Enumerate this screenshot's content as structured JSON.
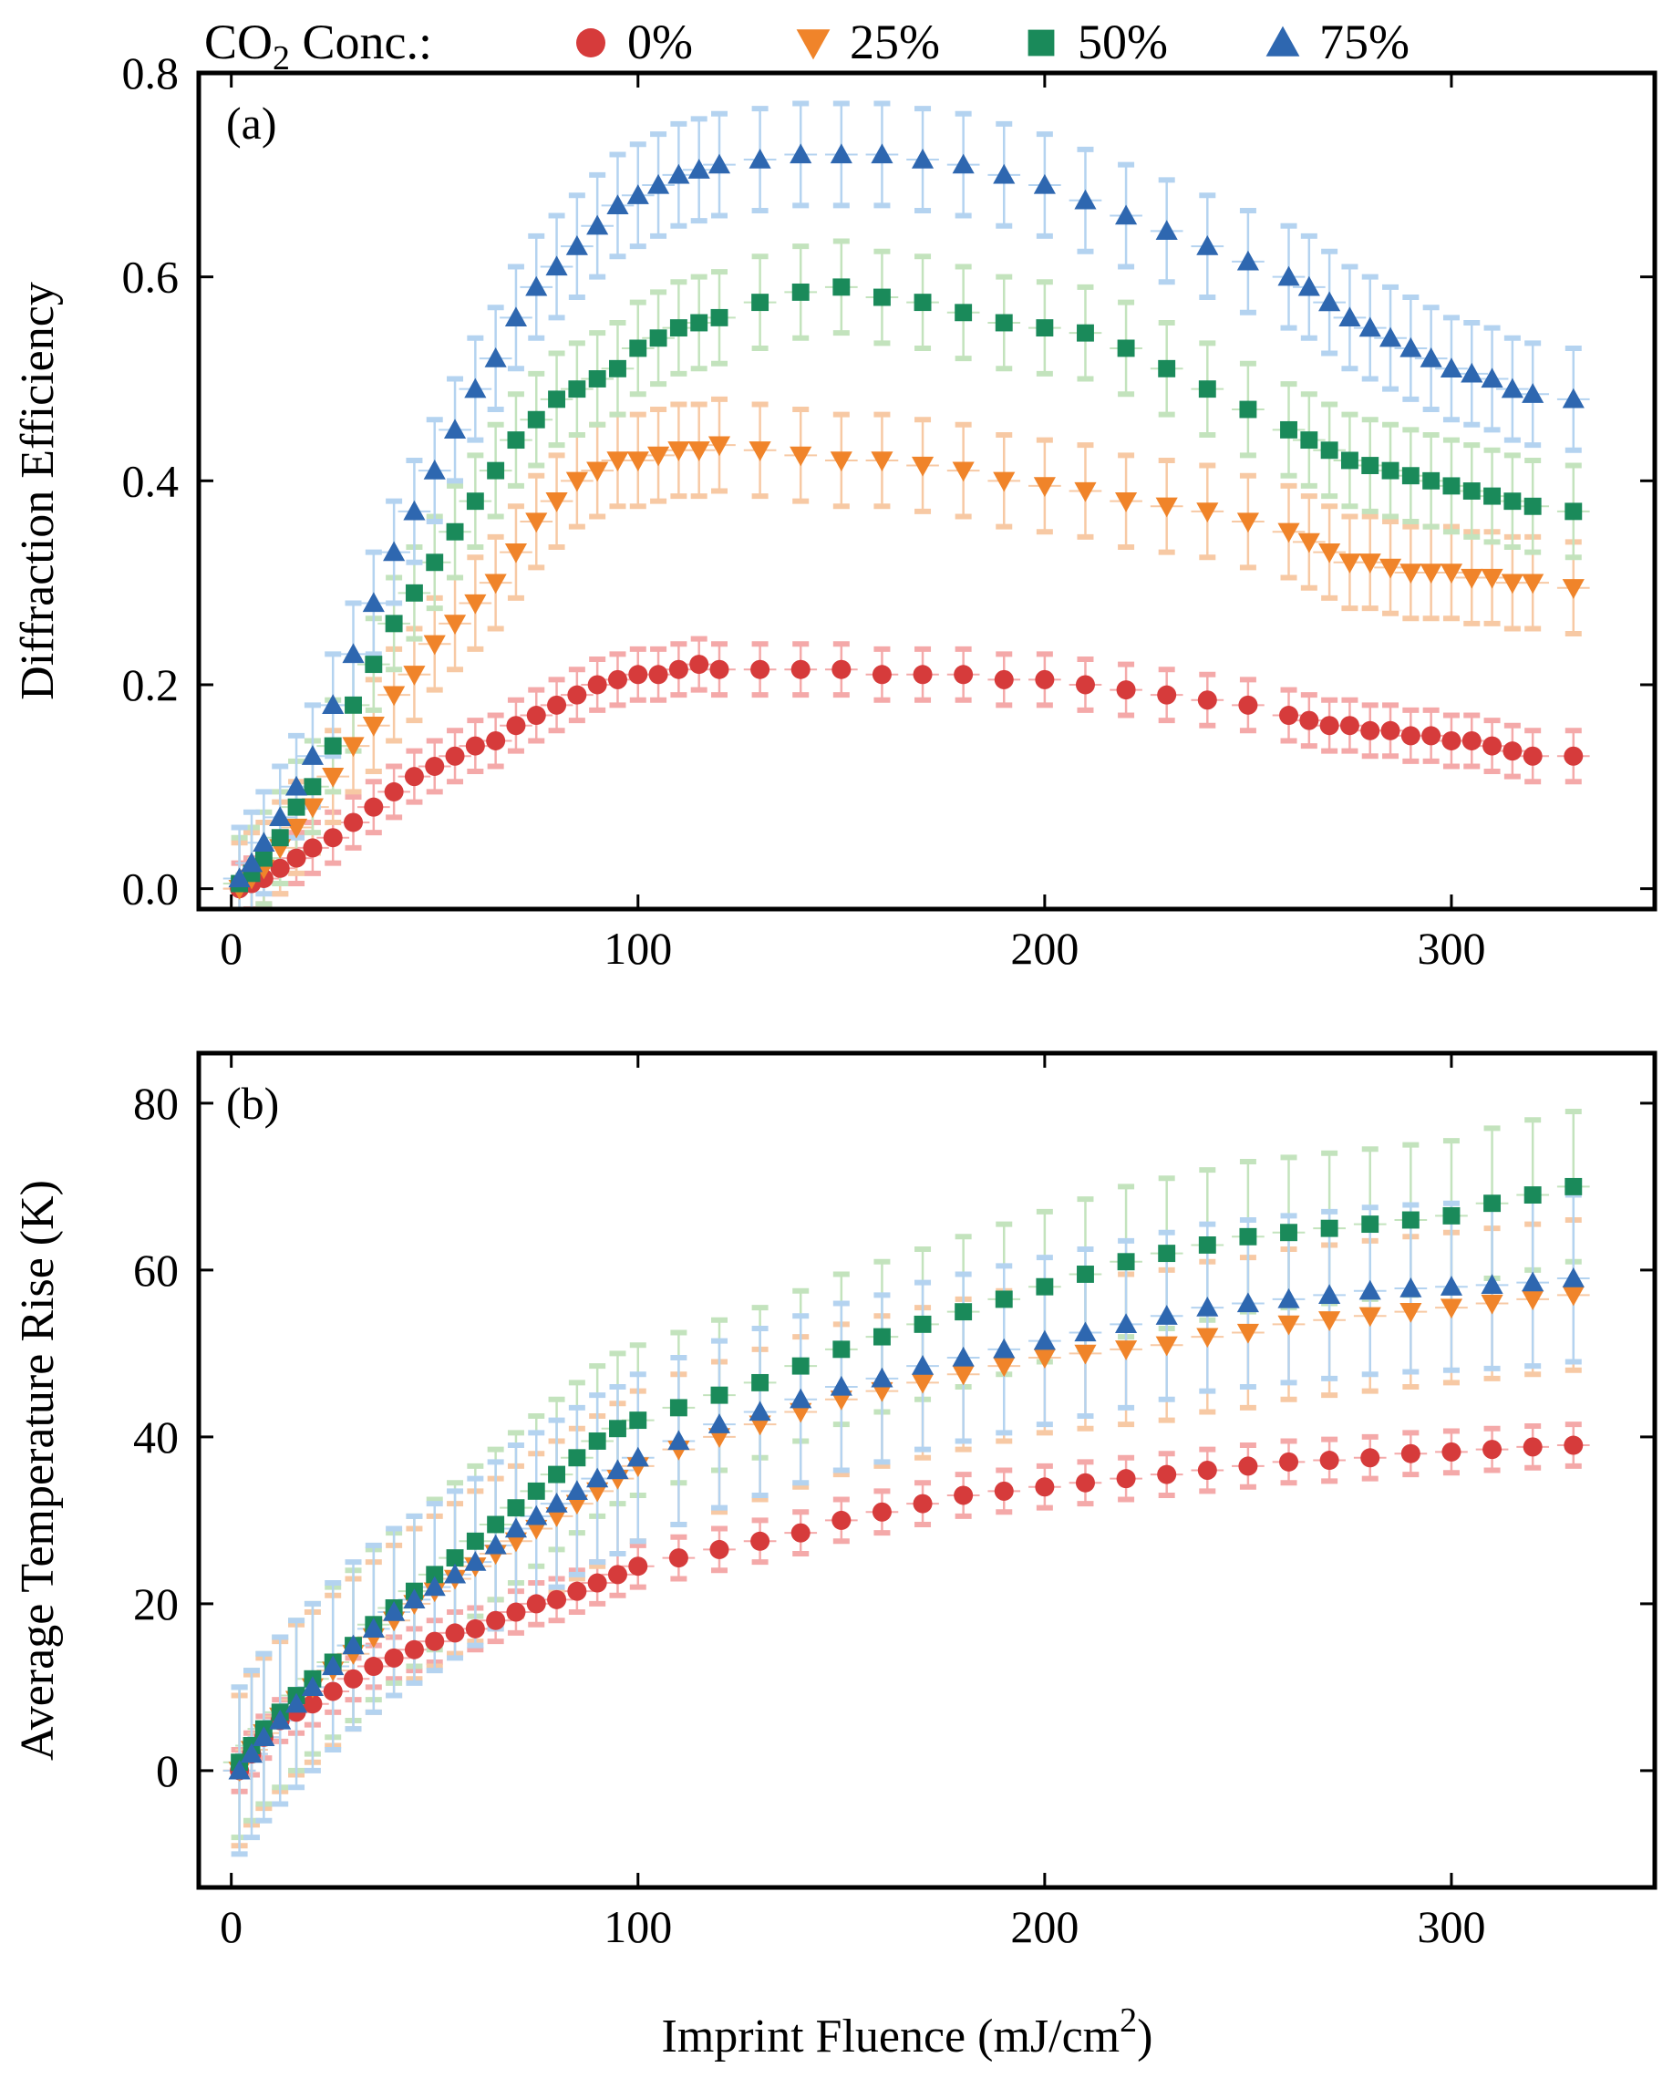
{
  "legend": {
    "title_main": "CO",
    "title_sub": "2",
    "title_rest": " Conc.:",
    "entries": [
      {
        "label": "0%",
        "marker": "circle",
        "color": "#d63b3b"
      },
      {
        "label": "25%",
        "marker": "triangle-down",
        "color": "#f0842a"
      },
      {
        "label": "50%",
        "marker": "square",
        "color": "#1a8a5a"
      },
      {
        "label": "75%",
        "marker": "triangle-up",
        "color": "#2e67b0"
      }
    ]
  },
  "xlabel_main": "Imprint Fluence (mJ/cm",
  "xlabel_sup": "2",
  "xlabel_end": ")",
  "chart_data": [
    {
      "type": "scatter",
      "panel": "(a)",
      "ylabel": "Diffraction Efficiency",
      "xlim": [
        -8,
        350
      ],
      "ylim": [
        -0.02,
        0.8
      ],
      "xticks": [
        0,
        100,
        200,
        300
      ],
      "xtick_labels": [
        "0",
        "100",
        "200",
        "300"
      ],
      "yticks": [
        0.0,
        0.2,
        0.4,
        0.6,
        0.8
      ],
      "ytick_labels": [
        "0.0",
        "0.2",
        "0.4",
        "0.6",
        "0.8"
      ],
      "series": [
        {
          "name": "0%",
          "x": [
            2,
            5,
            8,
            12,
            16,
            20,
            25,
            30,
            35,
            40,
            45,
            50,
            55,
            60,
            65,
            70,
            75,
            80,
            85,
            90,
            95,
            100,
            105,
            110,
            115,
            120,
            130,
            140,
            150,
            160,
            170,
            180,
            190,
            200,
            210,
            220,
            230,
            240,
            250,
            260,
            265,
            270,
            275,
            280,
            285,
            290,
            295,
            300,
            305,
            310,
            315,
            320,
            330
          ],
          "y": [
            0.0,
            0.005,
            0.01,
            0.02,
            0.03,
            0.04,
            0.05,
            0.065,
            0.08,
            0.095,
            0.11,
            0.12,
            0.13,
            0.14,
            0.145,
            0.16,
            0.17,
            0.18,
            0.19,
            0.2,
            0.205,
            0.21,
            0.21,
            0.215,
            0.22,
            0.215,
            0.215,
            0.215,
            0.215,
            0.21,
            0.21,
            0.21,
            0.205,
            0.205,
            0.2,
            0.195,
            0.19,
            0.185,
            0.18,
            0.17,
            0.165,
            0.16,
            0.16,
            0.155,
            0.155,
            0.15,
            0.15,
            0.145,
            0.145,
            0.14,
            0.135,
            0.13,
            0.13
          ],
          "err": 0.025
        },
        {
          "name": "25%",
          "x": [
            2,
            5,
            8,
            12,
            16,
            20,
            25,
            30,
            35,
            40,
            45,
            50,
            55,
            60,
            65,
            70,
            75,
            80,
            85,
            90,
            95,
            100,
            105,
            110,
            115,
            120,
            130,
            140,
            150,
            160,
            170,
            180,
            190,
            200,
            210,
            220,
            230,
            240,
            250,
            260,
            265,
            270,
            275,
            280,
            285,
            290,
            295,
            300,
            305,
            310,
            315,
            320,
            330
          ],
          "y": [
            0.0,
            0.01,
            0.02,
            0.04,
            0.06,
            0.08,
            0.11,
            0.14,
            0.16,
            0.19,
            0.21,
            0.24,
            0.26,
            0.28,
            0.3,
            0.33,
            0.36,
            0.38,
            0.4,
            0.41,
            0.42,
            0.42,
            0.425,
            0.43,
            0.43,
            0.435,
            0.43,
            0.425,
            0.42,
            0.42,
            0.415,
            0.41,
            0.4,
            0.395,
            0.39,
            0.38,
            0.375,
            0.37,
            0.36,
            0.35,
            0.34,
            0.33,
            0.32,
            0.32,
            0.315,
            0.31,
            0.31,
            0.31,
            0.305,
            0.305,
            0.3,
            0.3,
            0.295
          ],
          "err": 0.045
        },
        {
          "name": "50%",
          "x": [
            2,
            5,
            8,
            12,
            16,
            20,
            25,
            30,
            35,
            40,
            45,
            50,
            55,
            60,
            65,
            70,
            75,
            80,
            85,
            90,
            95,
            100,
            105,
            110,
            115,
            120,
            130,
            140,
            150,
            160,
            170,
            180,
            190,
            200,
            210,
            220,
            230,
            240,
            250,
            260,
            265,
            270,
            275,
            280,
            285,
            290,
            295,
            300,
            305,
            310,
            315,
            320,
            330
          ],
          "y": [
            0.005,
            0.015,
            0.03,
            0.05,
            0.08,
            0.1,
            0.14,
            0.18,
            0.22,
            0.26,
            0.29,
            0.32,
            0.35,
            0.38,
            0.41,
            0.44,
            0.46,
            0.48,
            0.49,
            0.5,
            0.51,
            0.53,
            0.54,
            0.55,
            0.555,
            0.56,
            0.575,
            0.585,
            0.59,
            0.58,
            0.575,
            0.565,
            0.555,
            0.55,
            0.545,
            0.53,
            0.51,
            0.49,
            0.47,
            0.45,
            0.44,
            0.43,
            0.42,
            0.415,
            0.41,
            0.405,
            0.4,
            0.395,
            0.39,
            0.385,
            0.38,
            0.375,
            0.37
          ],
          "err": 0.045
        },
        {
          "name": "75%",
          "x": [
            2,
            5,
            8,
            12,
            16,
            20,
            25,
            30,
            35,
            40,
            45,
            50,
            55,
            60,
            65,
            70,
            75,
            80,
            85,
            90,
            95,
            100,
            105,
            110,
            115,
            120,
            130,
            140,
            150,
            160,
            170,
            180,
            190,
            200,
            210,
            220,
            230,
            240,
            250,
            260,
            265,
            270,
            275,
            280,
            285,
            290,
            295,
            300,
            305,
            310,
            315,
            320,
            330
          ],
          "y": [
            0.01,
            0.025,
            0.045,
            0.07,
            0.1,
            0.13,
            0.18,
            0.23,
            0.28,
            0.33,
            0.37,
            0.41,
            0.45,
            0.49,
            0.52,
            0.56,
            0.59,
            0.61,
            0.63,
            0.65,
            0.67,
            0.68,
            0.69,
            0.7,
            0.705,
            0.71,
            0.715,
            0.72,
            0.72,
            0.72,
            0.715,
            0.71,
            0.7,
            0.69,
            0.675,
            0.66,
            0.645,
            0.63,
            0.615,
            0.6,
            0.59,
            0.575,
            0.56,
            0.55,
            0.54,
            0.53,
            0.52,
            0.51,
            0.505,
            0.5,
            0.49,
            0.485,
            0.48
          ],
          "err": 0.05
        }
      ]
    },
    {
      "type": "scatter",
      "panel": "(b)",
      "ylabel": "Average Temperature Rise (K)",
      "xlim": [
        -8,
        350
      ],
      "ylim": [
        -14,
        86
      ],
      "xticks": [
        0,
        100,
        200,
        300
      ],
      "xtick_labels": [
        "0",
        "100",
        "200",
        "300"
      ],
      "yticks": [
        0,
        20,
        40,
        60,
        80
      ],
      "ytick_labels": [
        "0",
        "20",
        "40",
        "60",
        "80"
      ],
      "series": [
        {
          "name": "0%",
          "x": [
            2,
            5,
            8,
            12,
            16,
            20,
            25,
            30,
            35,
            40,
            45,
            50,
            55,
            60,
            65,
            70,
            75,
            80,
            85,
            90,
            95,
            100,
            110,
            120,
            130,
            140,
            150,
            160,
            170,
            180,
            190,
            200,
            210,
            220,
            230,
            240,
            250,
            260,
            270,
            280,
            290,
            300,
            310,
            320,
            330
          ],
          "y": [
            0,
            2,
            4,
            6,
            7,
            8,
            9.5,
            11,
            12.5,
            13.5,
            14.5,
            15.5,
            16.5,
            17,
            18,
            19,
            20,
            20.5,
            21.5,
            22.5,
            23.5,
            24.5,
            25.5,
            26.5,
            27.5,
            28.5,
            30,
            31,
            32,
            33,
            33.5,
            34,
            34.5,
            35,
            35.5,
            36,
            36.5,
            37,
            37.2,
            37.5,
            38,
            38.2,
            38.5,
            38.8,
            39
          ],
          "err": 2.5
        },
        {
          "name": "25%",
          "x": [
            2,
            5,
            8,
            12,
            16,
            20,
            25,
            30,
            35,
            40,
            45,
            50,
            55,
            60,
            65,
            70,
            75,
            80,
            85,
            90,
            95,
            100,
            110,
            120,
            130,
            140,
            150,
            160,
            170,
            180,
            190,
            200,
            210,
            220,
            230,
            240,
            250,
            260,
            270,
            280,
            290,
            300,
            310,
            320,
            330
          ],
          "y": [
            0,
            2.5,
            4.5,
            6.5,
            8.5,
            10,
            12,
            14,
            16,
            18,
            20,
            21.5,
            23,
            24.5,
            26,
            27.5,
            29,
            30.5,
            32,
            33.5,
            35,
            36.5,
            38.5,
            40,
            41.5,
            43,
            44.5,
            45.5,
            46.5,
            47.5,
            48.5,
            49.5,
            50,
            50.5,
            51,
            52,
            52.5,
            53.5,
            54,
            54.5,
            55,
            55.5,
            56,
            56.5,
            57
          ],
          "err": 9
        },
        {
          "name": "50%",
          "x": [
            2,
            5,
            8,
            12,
            16,
            20,
            25,
            30,
            35,
            40,
            45,
            50,
            55,
            60,
            65,
            70,
            75,
            80,
            85,
            90,
            95,
            100,
            110,
            120,
            130,
            140,
            150,
            160,
            170,
            180,
            190,
            200,
            210,
            220,
            230,
            240,
            250,
            260,
            270,
            280,
            290,
            300,
            310,
            320,
            330
          ],
          "y": [
            1,
            3,
            5,
            7,
            9,
            11,
            13,
            15,
            17.5,
            19.5,
            21.5,
            23.5,
            25.5,
            27.5,
            29.5,
            31.5,
            33.5,
            35.5,
            37.5,
            39.5,
            41,
            42,
            43.5,
            45,
            46.5,
            48.5,
            50.5,
            52,
            53.5,
            55,
            56.5,
            58,
            59.5,
            61,
            62,
            63,
            64,
            64.5,
            65,
            65.5,
            66,
            66.5,
            68,
            69,
            70
          ],
          "err": 9
        },
        {
          "name": "75%",
          "x": [
            2,
            5,
            8,
            12,
            16,
            20,
            25,
            30,
            35,
            40,
            45,
            50,
            55,
            60,
            65,
            70,
            75,
            80,
            85,
            90,
            95,
            100,
            110,
            120,
            130,
            140,
            150,
            160,
            170,
            180,
            190,
            200,
            210,
            220,
            230,
            240,
            250,
            260,
            270,
            280,
            290,
            300,
            310,
            320,
            330
          ],
          "y": [
            0,
            2,
            4,
            6,
            8,
            10,
            12.5,
            15,
            17,
            19,
            20.5,
            22,
            23.5,
            25,
            27,
            29,
            30.5,
            32,
            33.5,
            35,
            36,
            37.5,
            39.5,
            41.5,
            43,
            44.5,
            46,
            47,
            48.5,
            49.5,
            50.5,
            51.5,
            52.5,
            53.5,
            54.5,
            55.5,
            56,
            56.5,
            57,
            57.5,
            57.8,
            58,
            58.2,
            58.5,
            59
          ],
          "err": 10
        }
      ]
    }
  ]
}
